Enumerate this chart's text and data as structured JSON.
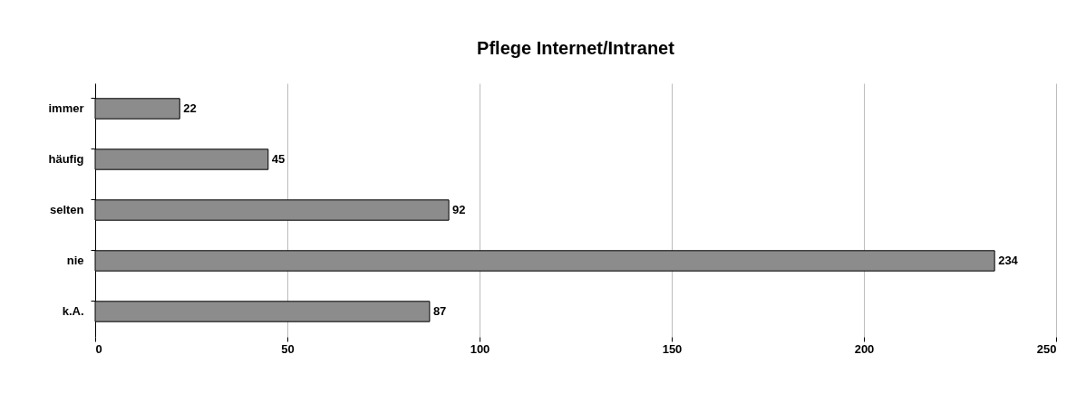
{
  "chart_data": {
    "type": "bar",
    "orientation": "horizontal",
    "title": "Pflege Internet/Intranet",
    "categories": [
      "immer",
      "häufig",
      "selten",
      "nie",
      "k.A."
    ],
    "values": [
      22,
      45,
      92,
      234,
      87
    ],
    "color": "#8c8c8c",
    "xlim": [
      0,
      250
    ],
    "xticks": [
      0,
      50,
      100,
      150,
      200,
      250
    ],
    "grid": "x",
    "data_labels": true
  }
}
